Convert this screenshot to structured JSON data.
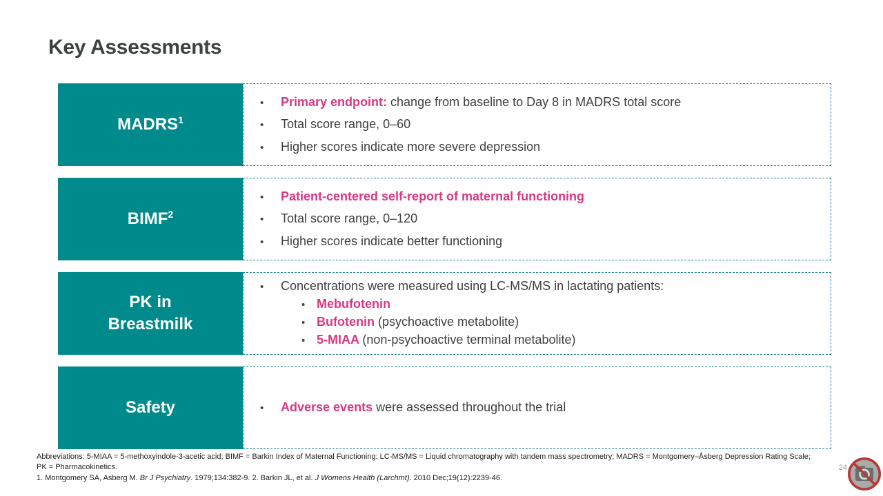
{
  "title": "Key Assessments",
  "colors": {
    "teal": "#008a8b",
    "accent": "#d63984",
    "dash_border": "#17818d"
  },
  "rows": [
    {
      "label_lines": [
        "MADRS"
      ],
      "label_sup": "1",
      "align": "spread",
      "bullets": [
        {
          "level": 1,
          "segments": [
            {
              "t": "Primary endpoint: ",
              "accent": true
            },
            {
              "t": "change from baseline to Day 8 in MADRS total score"
            }
          ]
        },
        {
          "level": 1,
          "segments": [
            {
              "t": "Total score range, 0–60"
            }
          ]
        },
        {
          "level": 1,
          "segments": [
            {
              "t": "Higher scores indicate more severe depression"
            }
          ]
        }
      ]
    },
    {
      "label_lines": [
        "BIMF"
      ],
      "label_sup": "2",
      "align": "spread",
      "bullets": [
        {
          "level": 1,
          "segments": [
            {
              "t": "Patient-centered self-report of maternal functioning",
              "accent": true
            }
          ]
        },
        {
          "level": 1,
          "segments": [
            {
              "t": "Total score range, 0–120"
            }
          ]
        },
        {
          "level": 1,
          "segments": [
            {
              "t": "Higher scores indicate better functioning"
            }
          ]
        }
      ]
    },
    {
      "label_lines": [
        "PK in",
        "Breastmilk"
      ],
      "label_sup": "",
      "align": "spread",
      "bullets": [
        {
          "level": 1,
          "segments": [
            {
              "t": "Concentrations were measured using LC-MS/MS in lactating patients:"
            }
          ]
        },
        {
          "level": 2,
          "segments": [
            {
              "t": "Mebufotenin",
              "accent": true
            }
          ]
        },
        {
          "level": 2,
          "segments": [
            {
              "t": "Bufotenin ",
              "accent": true
            },
            {
              "t": "(psychoactive metabolite)"
            }
          ]
        },
        {
          "level": 2,
          "segments": [
            {
              "t": "5-MIAA ",
              "accent": true
            },
            {
              "t": "(non-psychoactive terminal metabolite)"
            }
          ]
        }
      ]
    },
    {
      "label_lines": [
        "Safety"
      ],
      "label_sup": "",
      "align": "center",
      "bullets": [
        {
          "level": 1,
          "segments": [
            {
              "t": "Adverse events ",
              "accent": true
            },
            {
              "t": "were assessed throughout the trial"
            }
          ]
        }
      ]
    }
  ],
  "footer": {
    "abbreviations_line1": "Abbreviations: 5-MIAA = 5-methoxyindole-3-acetic acid; BIMF = Barkin Index of Maternal Functioning; LC-MS/MS = Liquid chromatography with tandem mass spectrometry; MADRS = Montgomery–Åsberg Depression Rating Scale;",
    "abbreviations_line2": "PK = Pharmacokinetics.",
    "reference_segments": [
      {
        "t": "1. Montgomery SA, Asberg M. "
      },
      {
        "t": "Br J Psychiatry",
        "italic": true
      },
      {
        "t": ". 1979;134:382-9. 2. Barkin JL, et al. "
      },
      {
        "t": "J Womens Health (Larchmt)",
        "italic": true
      },
      {
        "t": ". 2010 Dec;19(12):2239-46."
      }
    ],
    "page_number": "24"
  },
  "logo": {
    "name": "no-image-placeholder"
  }
}
